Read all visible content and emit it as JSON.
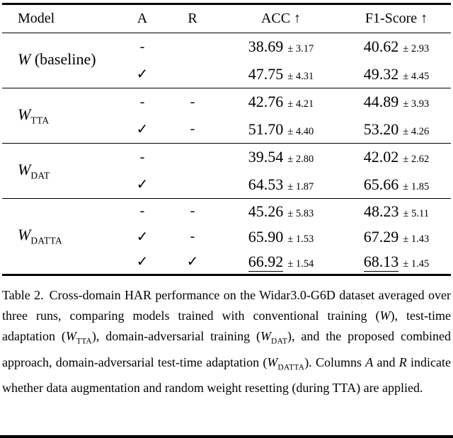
{
  "table": {
    "headers": {
      "model": "Model",
      "a": "A",
      "r": "R",
      "acc": "ACC ↑",
      "f1": "F1-Score ↑"
    },
    "sections": [
      {
        "model": {
          "w": "W",
          "sub": "",
          "suffix": " (baseline)"
        },
        "rows": [
          {
            "a": "-",
            "r": "",
            "acc": "38.69",
            "acc_std": "± 3.17",
            "f1": "40.62",
            "f1_std": "± 2.93"
          },
          {
            "a": "✓",
            "r": "",
            "acc": "47.75",
            "acc_std": "± 4.31",
            "f1": "49.32",
            "f1_std": "± 4.45"
          }
        ]
      },
      {
        "model": {
          "w": "W",
          "sub": "TTA",
          "suffix": ""
        },
        "rows": [
          {
            "a": "-",
            "r": "-",
            "acc": "42.76",
            "acc_std": "± 4.21",
            "f1": "44.89",
            "f1_std": "± 3.93"
          },
          {
            "a": "✓",
            "r": "-",
            "acc": "51.70",
            "acc_std": "± 4.40",
            "f1": "53.20",
            "f1_std": "± 4.26"
          }
        ]
      },
      {
        "model": {
          "w": "W",
          "sub": "DAT",
          "suffix": ""
        },
        "rows": [
          {
            "a": "-",
            "r": "",
            "acc": "39.54",
            "acc_std": "± 2.80",
            "f1": "42.02",
            "f1_std": "± 2.62"
          },
          {
            "a": "✓",
            "r": "",
            "acc": "64.53",
            "acc_std": "± 1.87",
            "f1": "65.66",
            "f1_std": "± 1.85"
          }
        ]
      },
      {
        "model": {
          "w": "W",
          "sub": "DATTA",
          "suffix": ""
        },
        "rows": [
          {
            "a": "-",
            "r": "-",
            "acc": "45.26",
            "acc_std": "± 5.83",
            "f1": "48.23",
            "f1_std": "± 5.11"
          },
          {
            "a": "✓",
            "r": "-",
            "acc": "65.90",
            "acc_std": "± 1.53",
            "f1": "67.29",
            "f1_std": "± 1.43"
          },
          {
            "a": "✓",
            "r": "✓",
            "acc": "66.92",
            "acc_std": "± 1.54",
            "f1": "68.13",
            "f1_std": "± 1.45"
          }
        ]
      }
    ]
  },
  "caption": {
    "label": "Table 2.",
    "segments": [
      {
        "text": "Cross-domain HAR performance on the Widar3.0-G6D dataset averaged over three runs, comparing models trained with conventional training ("
      },
      {
        "math": "W"
      },
      {
        "text": "), test-time adaptation ("
      },
      {
        "math": "W",
        "sub": "TTA"
      },
      {
        "text": "), domain-adversarial training ("
      },
      {
        "math": "W",
        "sub": "DAT"
      },
      {
        "text": "), and the proposed combined approach, domain-adversarial test-time adaptation ("
      },
      {
        "math": "W",
        "sub": "DATTA"
      },
      {
        "text": ").  Columns "
      },
      {
        "math": "A"
      },
      {
        "text": " and "
      },
      {
        "math": "R"
      },
      {
        "text": " indicate whether data augmentation and random weight resetting (during TTA) are applied."
      }
    ]
  }
}
